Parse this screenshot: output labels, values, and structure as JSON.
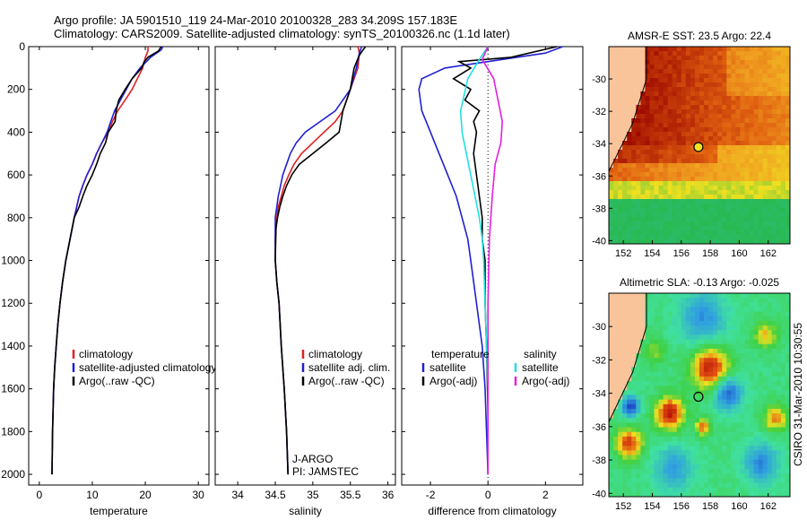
{
  "header": {
    "line1": "Argo profile: JA 5901510_119 24-Mar-2010 20100328_283 34.209S 157.183E",
    "line2": "Climatology: CARS2009. Satellite-adjusted climatology: synTS_20100326.nc (1.1d later)"
  },
  "credit": "CSIRO 31-Mar-2010 10:30:55",
  "chart_data": [
    {
      "type": "line",
      "name": "temperature-panel",
      "xlabel": "temperature",
      "ylabel": "",
      "xlim": [
        -2,
        32
      ],
      "ylim": [
        2050,
        0
      ],
      "xticks": [
        0,
        10,
        20,
        30
      ],
      "yticks": [
        0,
        200,
        400,
        600,
        800,
        1000,
        1200,
        1400,
        1600,
        1800,
        2000
      ],
      "legend": [
        "climatology",
        "satellite-adjusted climatology",
        "Argo(..raw -QC)"
      ],
      "legend_location": "lower-right",
      "series": [
        {
          "name": "climatology",
          "color": "#e02020",
          "x": [
            20.5,
            20.5,
            20.0,
            19.5,
            18.5,
            17.5,
            16.2,
            14.8,
            13.8,
            13.0,
            11.8,
            10.8,
            10.0,
            9.0,
            8.2,
            7.5,
            6.6,
            5.8,
            5.0,
            4.4,
            3.9,
            3.5,
            3.2,
            2.9,
            2.7,
            2.5,
            2.4
          ],
          "y": [
            0,
            20,
            50,
            100,
            150,
            200,
            250,
            300,
            350,
            400,
            450,
            500,
            550,
            600,
            650,
            700,
            800,
            900,
            1000,
            1100,
            1200,
            1300,
            1400,
            1500,
            1600,
            1800,
            2000
          ]
        },
        {
          "name": "satellite-adjusted climatology",
          "color": "#2020d0",
          "x": [
            23.3,
            23.0,
            21.0,
            19.0,
            17.5,
            16.4,
            15.3,
            14.2,
            13.5,
            12.8,
            11.8,
            10.8,
            10.0,
            9.0,
            8.2,
            7.5,
            6.6,
            5.8,
            5.0,
            4.4,
            3.9,
            3.5,
            3.2,
            2.9,
            2.7,
            2.5,
            2.4
          ],
          "y": [
            0,
            15,
            50,
            100,
            150,
            200,
            250,
            300,
            350,
            400,
            450,
            500,
            550,
            600,
            650,
            700,
            800,
            900,
            1000,
            1100,
            1200,
            1300,
            1400,
            1500,
            1600,
            1800,
            2000
          ]
        },
        {
          "name": "Argo(..raw -QC)",
          "color": "#000000",
          "x": [
            23.0,
            22.5,
            20.5,
            19.8,
            19.3,
            17.5,
            16.2,
            15.0,
            14.5,
            14.3,
            13.0,
            12.5,
            11.5,
            10.8,
            10.0,
            9.0,
            8.2,
            7.5,
            6.6,
            5.8,
            5.0,
            4.4,
            3.9,
            3.5,
            3.2,
            2.9,
            2.7,
            2.5,
            2.4
          ],
          "y": [
            0,
            20,
            50,
            70,
            100,
            150,
            200,
            250,
            300,
            350,
            400,
            450,
            500,
            550,
            600,
            650,
            700,
            750,
            800,
            900,
            1000,
            1100,
            1200,
            1300,
            1400,
            1500,
            1600,
            1800,
            2000
          ]
        }
      ]
    },
    {
      "type": "line",
      "name": "salinity-panel",
      "xlabel": "salinity",
      "ylabel": "",
      "xlim": [
        33.7,
        36.1
      ],
      "ylim": [
        2050,
        0
      ],
      "xticks": [
        34,
        34.5,
        35,
        35.5,
        36
      ],
      "xticklabels": [
        "34",
        "34.5",
        "35",
        "35.5",
        "36"
      ],
      "legend": [
        "climatology",
        "satellite adj. clim.",
        "Argo(..raw -QC)"
      ],
      "legend_location": "lower-right",
      "annotation": [
        "J-ARGO",
        "PI: JAMSTEC"
      ],
      "series": [
        {
          "name": "climatology",
          "color": "#e02020",
          "x": [
            35.6,
            35.62,
            35.6,
            35.5,
            35.4,
            35.3,
            35.15,
            35.0,
            34.85,
            34.75,
            34.68,
            34.62,
            34.58,
            34.54,
            34.52,
            34.5,
            34.5,
            34.52,
            34.55,
            34.58,
            34.62,
            34.65,
            34.67
          ],
          "y": [
            0,
            30,
            100,
            200,
            300,
            350,
            400,
            450,
            500,
            550,
            600,
            650,
            700,
            750,
            800,
            900,
            1000,
            1100,
            1200,
            1400,
            1600,
            1800,
            2000
          ]
        },
        {
          "name": "satellite adj. clim.",
          "color": "#2020d0",
          "x": [
            35.65,
            35.62,
            35.58,
            35.5,
            35.3,
            35.1,
            34.9,
            34.78,
            34.7,
            34.65,
            34.6,
            34.57,
            34.54,
            34.52,
            34.5,
            34.5,
            34.52,
            34.55,
            34.58,
            34.62,
            34.65,
            34.67
          ],
          "y": [
            0,
            30,
            100,
            200,
            300,
            350,
            400,
            450,
            500,
            550,
            600,
            650,
            700,
            750,
            800,
            1000,
            1100,
            1200,
            1400,
            1600,
            1800,
            2000
          ]
        },
        {
          "name": "Argo(..raw -QC)",
          "color": "#000000",
          "x": [
            35.7,
            35.62,
            35.55,
            35.5,
            35.4,
            35.35,
            35.18,
            35.0,
            34.82,
            34.72,
            34.65,
            34.6,
            34.56,
            34.53,
            34.51,
            34.5,
            34.52,
            34.55,
            34.58,
            34.62,
            34.65,
            34.67
          ],
          "y": [
            0,
            40,
            100,
            200,
            300,
            400,
            450,
            500,
            550,
            600,
            650,
            700,
            750,
            800,
            850,
            1000,
            1100,
            1200,
            1400,
            1600,
            1800,
            2000
          ]
        }
      ]
    },
    {
      "type": "line",
      "name": "difference-panel",
      "xlabel": "difference from climatology",
      "ylabel": "",
      "xlim": [
        -3,
        3.3
      ],
      "ylim": [
        2050,
        0
      ],
      "xticks": [
        -2,
        0,
        2
      ],
      "zero_line": "dotted",
      "legend_groups": [
        {
          "title": "temperature",
          "items": [
            "satellite",
            "Argo(-adj)"
          ]
        },
        {
          "title": "salinity",
          "items": [
            "satellite",
            "Argo(-adj)"
          ]
        }
      ],
      "legend_location": "lower-center",
      "series": [
        {
          "name": "temperature satellite",
          "color": "#2020d0",
          "x": [
            2.6,
            2.0,
            0.5,
            -1.5,
            -2.3,
            -2.4,
            -2.3,
            -2.0,
            -1.7,
            -1.4,
            -1.1,
            -0.9,
            -0.7,
            -0.6,
            -0.5,
            -0.4,
            -0.3,
            -0.2,
            -0.1,
            -0.05,
            0.0
          ],
          "y": [
            0,
            30,
            60,
            100,
            150,
            200,
            300,
            400,
            500,
            600,
            700,
            800,
            900,
            1000,
            1100,
            1200,
            1300,
            1400,
            1600,
            1800,
            2000
          ]
        },
        {
          "name": "temperature Argo(-adj)",
          "color": "#000000",
          "x": [
            2.4,
            0.8,
            -1.0,
            -0.6,
            -1.2,
            -0.6,
            -0.8,
            -0.3,
            -0.5,
            -0.4,
            -0.5,
            -0.4,
            -0.3,
            -0.2,
            -0.2,
            -0.1,
            -0.1,
            -0.05,
            0.0,
            0.0
          ],
          "y": [
            0,
            50,
            70,
            100,
            150,
            200,
            250,
            300,
            350,
            400,
            500,
            600,
            700,
            800,
            900,
            1000,
            1200,
            1400,
            1700,
            2000
          ]
        },
        {
          "name": "salinity satellite",
          "color": "#20e0e0",
          "x": [
            0.0,
            -0.3,
            -0.7,
            -0.95,
            -0.9,
            -0.75,
            -0.6,
            -0.45,
            -0.3,
            -0.2,
            -0.15,
            -0.1,
            -0.05,
            0.0,
            0.0,
            0.0,
            0.0
          ],
          "y": [
            0,
            60,
            150,
            300,
            400,
            500,
            600,
            700,
            800,
            900,
            1000,
            1200,
            1400,
            1600,
            1800,
            1900,
            2000
          ]
        },
        {
          "name": "salinity Argo(-adj)",
          "color": "#e020e0",
          "x": [
            0.0,
            -0.2,
            0.2,
            0.35,
            0.5,
            0.45,
            0.25,
            0.15,
            0.05,
            0.0,
            0.0,
            0.0
          ],
          "y": [
            0,
            60,
            150,
            250,
            350,
            450,
            550,
            700,
            900,
            1200,
            1600,
            2000
          ]
        }
      ]
    },
    {
      "type": "heatmap",
      "name": "sst-map",
      "title": "AMSR-E SST: 23.5 Argo: 22.4",
      "xlim": [
        151,
        163.5
      ],
      "ylim": [
        -40.2,
        -28
      ],
      "xticks": [
        152,
        154,
        156,
        158,
        160,
        162
      ],
      "yticks": [
        -30,
        -32,
        -34,
        -36,
        -38,
        -40
      ],
      "marker": {
        "lon": 157.183,
        "lat": -34.209
      },
      "colors": {
        "land": "#f9c49a",
        "warm": "#9e0a00",
        "orange": "#f07800",
        "yellow": "#f0e020",
        "green": "#28b848",
        "cool": "#30c090"
      }
    },
    {
      "type": "heatmap",
      "name": "sla-map",
      "title": "Altimetric SLA: -0.13 Argo: -0.025",
      "xlim": [
        151,
        163.5
      ],
      "ylim": [
        -40.2,
        -28
      ],
      "xticks": [
        152,
        154,
        156,
        158,
        160,
        162
      ],
      "yticks": [
        -30,
        -32,
        -34,
        -36,
        -38,
        -40
      ],
      "marker": {
        "lon": 157.183,
        "lat": -34.209
      },
      "colors": {
        "land": "#f9c49a",
        "low": "#1830c0",
        "mid": "#40e0a0",
        "high": "#b00808",
        "yellow": "#f0e020"
      }
    }
  ]
}
